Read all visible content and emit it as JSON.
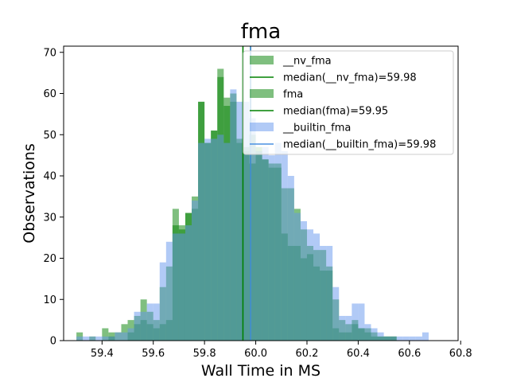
{
  "chart_data": {
    "type": "bar",
    "title": "fma",
    "xlabel": "Wall Time in MS",
    "ylabel": "Observations",
    "xlim": [
      59.25,
      60.79
    ],
    "ylim": [
      0,
      71.5
    ],
    "xticks": [
      59.4,
      59.6,
      59.8,
      60.0,
      60.2,
      60.4,
      60.6,
      60.8
    ],
    "xtick_labels": [
      "59.4",
      "59.6",
      "59.8",
      "60.0",
      "60.2",
      "60.4",
      "60.6",
      "60.8"
    ],
    "yticks": [
      0,
      10,
      20,
      30,
      40,
      50,
      60,
      70
    ],
    "ytick_labels": [
      "0",
      "10",
      "20",
      "30",
      "40",
      "50",
      "60",
      "70"
    ],
    "bin_width": 0.025,
    "bin_start": 59.3,
    "series": [
      {
        "name": "__nv_fma",
        "color": "#008000",
        "alpha": 0.5,
        "values": [
          2,
          0,
          1,
          0,
          3,
          1,
          2,
          4,
          5,
          6,
          10,
          7,
          5,
          13,
          18,
          32,
          28,
          31,
          35,
          58,
          48,
          51,
          66,
          59,
          60,
          49,
          47,
          50,
          47,
          44,
          43,
          43,
          37,
          37,
          32,
          27,
          23,
          22,
          22,
          18,
          10,
          5,
          4,
          5,
          3,
          3,
          2,
          1,
          1,
          1,
          0,
          0,
          0,
          0,
          0,
          0,
          0,
          0,
          0,
          0,
          0,
          0
        ]
      },
      {
        "name": "fma",
        "color": "#008000",
        "alpha": 0.5,
        "values": [
          0,
          0,
          0,
          0,
          0,
          2,
          0,
          0,
          2,
          4,
          5,
          4,
          3,
          4,
          5,
          28,
          27,
          31,
          32,
          58,
          48,
          51,
          64,
          57,
          58,
          48,
          46,
          43,
          46,
          44,
          42,
          42,
          26,
          23,
          23,
          20,
          21,
          18,
          17,
          17,
          3,
          2,
          2,
          4,
          3,
          2,
          1,
          1,
          1,
          1,
          0,
          0,
          0,
          0,
          0,
          0,
          0,
          0,
          0,
          0,
          0,
          0
        ]
      },
      {
        "name": "__builtin_fma",
        "color": "#6495ED",
        "alpha": 0.5,
        "values": [
          1,
          1,
          1,
          1,
          1,
          1,
          2,
          2,
          3,
          7,
          7,
          9,
          9,
          19,
          24,
          26,
          26,
          28,
          34,
          48,
          49,
          49,
          50,
          48,
          61,
          58,
          58,
          54,
          46,
          47,
          45,
          48,
          46,
          40,
          31,
          29,
          27,
          26,
          23,
          23,
          13,
          6,
          6,
          9,
          9,
          4,
          3,
          2,
          1,
          1,
          1,
          1,
          1,
          1,
          2,
          0,
          0,
          0,
          0,
          0,
          0,
          0
        ]
      }
    ],
    "medians": [
      {
        "label": "median(__nv_fma)=59.98",
        "value": 59.98,
        "color": "#008000"
      },
      {
        "label": "median(fma)=59.95",
        "value": 59.95,
        "color": "#008000"
      },
      {
        "label": "median(__builtin_fma)=59.98",
        "value": 59.98,
        "color": "#4a90e2"
      }
    ],
    "legend": {
      "placement": "top-right",
      "entries": [
        {
          "label": "__nv_fma",
          "kind": "patch",
          "color": "#008000",
          "alpha": 0.5
        },
        {
          "label": "median(__nv_fma)=59.98",
          "kind": "line",
          "color": "#008000"
        },
        {
          "label": "fma",
          "kind": "patch",
          "color": "#008000",
          "alpha": 0.5
        },
        {
          "label": "median(fma)=59.95",
          "kind": "line",
          "color": "#008000"
        },
        {
          "label": "__builtin_fma",
          "kind": "patch",
          "color": "#6495ED",
          "alpha": 0.5
        },
        {
          "label": "median(__builtin_fma)=59.98",
          "kind": "line",
          "color": "#4a90e2"
        }
      ]
    },
    "grid": false
  }
}
